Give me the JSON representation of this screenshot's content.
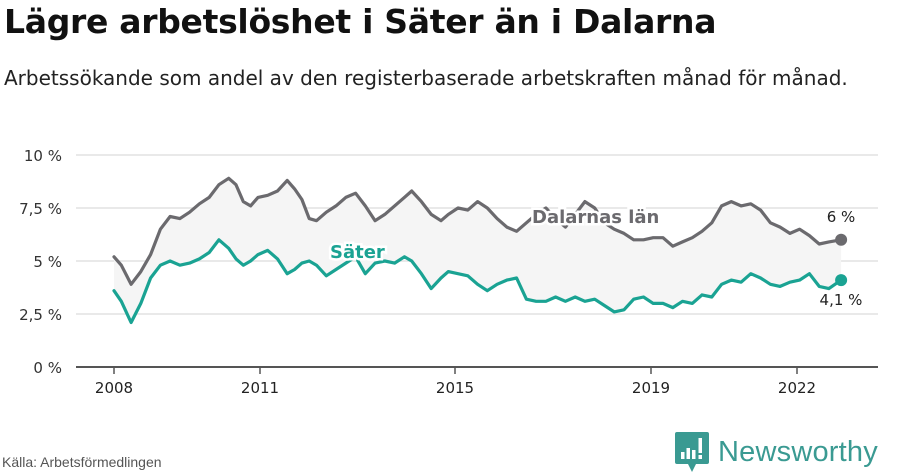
{
  "header": {
    "title": "Lägre arbetslöshet i Säter än i Dalarna",
    "subtitle": "Arbetssökande som andel av den registerbaserade arbetskraften månad för månad."
  },
  "footer": {
    "source": "Källa: Arbetsförmedlingen",
    "brand": "Newsworthy",
    "brand_icon": "bar-chart-speech-bubble-icon"
  },
  "colors": {
    "dalarna": "#6b6a6e",
    "sater": "#1aa393",
    "band_fill": "#f5f5f5",
    "grid": "#e2e2e2",
    "axis": "#555555",
    "brand": "#3a9a92"
  },
  "chart_data": {
    "type": "line",
    "title": "Lägre arbetslöshet i Säter än i Dalarna",
    "subtitle": "Arbetssökande som andel av den registerbaserade arbetskraften månad för månad.",
    "xlabel": "",
    "ylabel": "",
    "ylim": [
      0,
      10
    ],
    "yticks": [
      "0 %",
      "2,5 %",
      "5 %",
      "7,5 %",
      "10 %"
    ],
    "yticks_values": [
      0,
      2.5,
      5,
      7.5,
      10
    ],
    "xticks": [
      "2008",
      "2011",
      "2015",
      "2019",
      "2022"
    ],
    "grid": true,
    "legend": "inline labels",
    "annotations": [
      {
        "text": "Dalarnas län",
        "series": "Dalarnas län"
      },
      {
        "text": "Säter",
        "series": "Säter"
      },
      {
        "text": "6 %",
        "series": "Dalarnas län",
        "position": "end"
      },
      {
        "text": "4,1 %",
        "series": "Säter",
        "position": "end"
      }
    ],
    "series": [
      {
        "name": "Dalarnas län",
        "x": [
          2008.0,
          2008.15,
          2008.35,
          2008.55,
          2008.75,
          2008.95,
          2009.15,
          2009.35,
          2009.55,
          2009.75,
          2009.95,
          2010.15,
          2010.35,
          2010.5,
          2010.65,
          2010.8,
          2010.95,
          2011.15,
          2011.35,
          2011.55,
          2011.7,
          2011.85,
          2012.0,
          2012.15,
          2012.35,
          2012.55,
          2012.75,
          2012.95,
          2013.15,
          2013.35,
          2013.55,
          2013.75,
          2013.95,
          2014.1,
          2014.3,
          2014.5,
          2014.7,
          2014.85,
          2015.05,
          2015.25,
          2015.45,
          2015.65,
          2015.85,
          2016.05,
          2016.25,
          2016.45,
          2016.65,
          2016.85,
          2017.05,
          2017.25,
          2017.45,
          2017.65,
          2017.85,
          2018.05,
          2018.25,
          2018.45,
          2018.65,
          2018.85,
          2019.05,
          2019.25,
          2019.45,
          2019.65,
          2019.85,
          2020.05,
          2020.25,
          2020.45,
          2020.65,
          2020.85,
          2021.05,
          2021.25,
          2021.45,
          2021.65,
          2021.85,
          2022.05,
          2022.25,
          2022.45,
          2022.65,
          2022.9
        ],
        "values": [
          5.2,
          4.8,
          3.9,
          4.5,
          5.3,
          6.5,
          7.1,
          7.0,
          7.3,
          7.7,
          8.0,
          8.6,
          8.9,
          8.6,
          7.8,
          7.6,
          8.0,
          8.1,
          8.3,
          8.8,
          8.4,
          7.9,
          7.0,
          6.9,
          7.3,
          7.6,
          8.0,
          8.2,
          7.6,
          6.9,
          7.2,
          7.6,
          8.0,
          8.3,
          7.8,
          7.2,
          6.9,
          7.2,
          7.5,
          7.4,
          7.8,
          7.5,
          7.0,
          6.6,
          6.4,
          6.8,
          7.2,
          7.5,
          7.0,
          6.6,
          7.2,
          7.8,
          7.5,
          6.8,
          6.5,
          6.3,
          6.0,
          6.0,
          6.1,
          6.1,
          5.7,
          5.9,
          6.1,
          6.4,
          6.8,
          7.6,
          7.8,
          7.6,
          7.7,
          7.4,
          6.8,
          6.6,
          6.3,
          6.5,
          6.2,
          5.8,
          5.9,
          6.0
        ]
      },
      {
        "name": "Säter",
        "x": [
          2008.0,
          2008.15,
          2008.35,
          2008.55,
          2008.75,
          2008.95,
          2009.15,
          2009.35,
          2009.55,
          2009.75,
          2009.95,
          2010.15,
          2010.35,
          2010.5,
          2010.65,
          2010.8,
          2010.95,
          2011.15,
          2011.35,
          2011.55,
          2011.7,
          2011.85,
          2012.0,
          2012.15,
          2012.35,
          2012.55,
          2012.75,
          2012.95,
          2013.15,
          2013.35,
          2013.55,
          2013.75,
          2013.95,
          2014.1,
          2014.3,
          2014.5,
          2014.7,
          2014.85,
          2015.05,
          2015.25,
          2015.45,
          2015.65,
          2015.85,
          2016.05,
          2016.25,
          2016.45,
          2016.65,
          2016.85,
          2017.05,
          2017.25,
          2017.45,
          2017.65,
          2017.85,
          2018.05,
          2018.25,
          2018.45,
          2018.65,
          2018.85,
          2019.05,
          2019.25,
          2019.45,
          2019.65,
          2019.85,
          2020.05,
          2020.25,
          2020.45,
          2020.65,
          2020.85,
          2021.05,
          2021.25,
          2021.45,
          2021.65,
          2021.85,
          2022.05,
          2022.25,
          2022.45,
          2022.65,
          2022.9
        ],
        "values": [
          3.6,
          3.1,
          2.1,
          3.0,
          4.2,
          4.8,
          5.0,
          4.8,
          4.9,
          5.1,
          5.4,
          6.0,
          5.6,
          5.1,
          4.8,
          5.0,
          5.3,
          5.5,
          5.1,
          4.4,
          4.6,
          4.9,
          5.0,
          4.8,
          4.3,
          4.6,
          4.9,
          5.2,
          4.4,
          4.9,
          5.0,
          4.9,
          5.2,
          5.0,
          4.4,
          3.7,
          4.2,
          4.5,
          4.4,
          4.3,
          3.9,
          3.6,
          3.9,
          4.1,
          4.2,
          3.2,
          3.1,
          3.1,
          3.3,
          3.1,
          3.3,
          3.1,
          3.2,
          2.9,
          2.6,
          2.7,
          3.2,
          3.3,
          3.0,
          3.0,
          2.8,
          3.1,
          3.0,
          3.4,
          3.3,
          3.9,
          4.1,
          4.0,
          4.4,
          4.2,
          3.9,
          3.8,
          4.0,
          4.1,
          4.4,
          3.8,
          3.7,
          4.1
        ]
      }
    ]
  },
  "chart_labels": {
    "y": [
      "10 %",
      "7,5 %",
      "5 %",
      "2,5 %",
      "0 %"
    ],
    "x": [
      "2008",
      "2011",
      "2015",
      "2019",
      "2022"
    ],
    "dalarna_label": "Dalarnas län",
    "sater_label": "Säter",
    "dalarna_end": "6 %",
    "sater_end": "4,1 %"
  }
}
